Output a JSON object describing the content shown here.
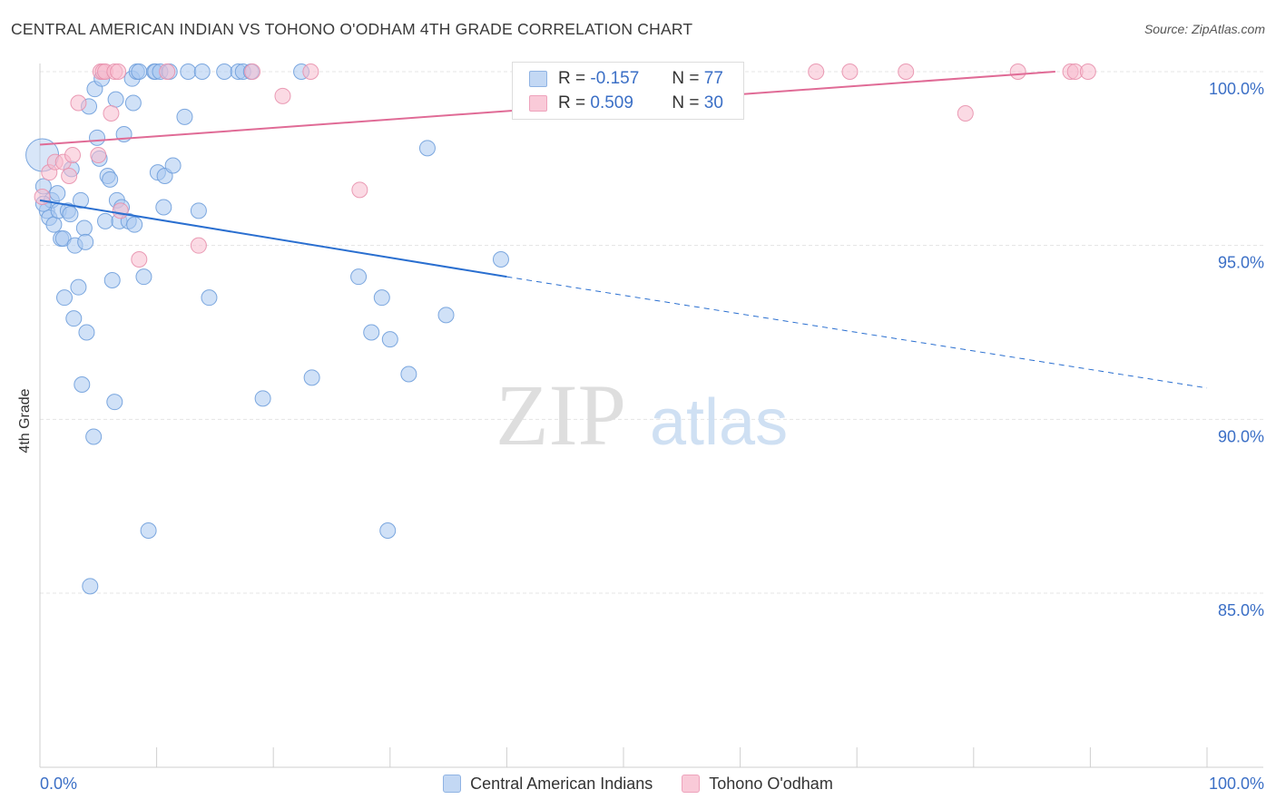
{
  "title": "CENTRAL AMERICAN INDIAN VS TOHONO O'ODHAM 4TH GRADE CORRELATION CHART",
  "source": "Source: ZipAtlas.com",
  "watermark": {
    "zip": "ZIP",
    "atlas": "atlas"
  },
  "colors": {
    "blue_fill": "#a9c8f0",
    "blue_stroke": "#6f9fdc",
    "blue_line": "#2a6fd0",
    "pink_fill": "#f7bccd",
    "pink_stroke": "#e891ad",
    "pink_line": "#e06b96",
    "tick_label": "#3b6fc6",
    "grid": "#e4e4e4"
  },
  "legend": {
    "r_label": "R =",
    "n_label": "N =",
    "rows": [
      {
        "r": "-0.157",
        "n": "77"
      },
      {
        "r": "0.509",
        "n": "30"
      }
    ]
  },
  "chart_data": {
    "type": "scatter",
    "title": "CENTRAL AMERICAN INDIAN VS TOHONO O'ODHAM 4TH GRADE CORRELATION CHART",
    "xlabel": "",
    "ylabel": "4th Grade",
    "xlim": [
      0,
      100
    ],
    "ylim": [
      80.5,
      100.8
    ],
    "x_tick_labels": [
      "0.0%",
      "100.0%"
    ],
    "y_ticks": [
      {
        "value": 100,
        "label": "100.0%"
      },
      {
        "value": 95,
        "label": "95.0%"
      },
      {
        "value": 90,
        "label": "90.0%"
      },
      {
        "value": 85,
        "label": "85.0%"
      }
    ],
    "grid": true,
    "legend_position": "top-center",
    "series": [
      {
        "name": "Central American Indians",
        "color": "#a9c8f0",
        "r": -0.157,
        "n": 77,
        "trend": {
          "x0": 0,
          "y0": 96.3,
          "x1": 40,
          "y1": 94.1,
          "dashed_to_x": 100,
          "dashed_to_y": 90.9
        },
        "points": [
          [
            0.2,
            97.6
          ],
          [
            0.3,
            96.7
          ],
          [
            0.6,
            96.0
          ],
          [
            0.8,
            95.8
          ],
          [
            1.0,
            96.3
          ],
          [
            1.2,
            95.6
          ],
          [
            1.5,
            96.5
          ],
          [
            1.6,
            96.0
          ],
          [
            1.8,
            95.2
          ],
          [
            2.0,
            95.2
          ],
          [
            2.1,
            93.5
          ],
          [
            2.4,
            96.0
          ],
          [
            2.6,
            95.9
          ],
          [
            2.7,
            97.2
          ],
          [
            2.9,
            92.9
          ],
          [
            3.0,
            95.0
          ],
          [
            3.3,
            93.8
          ],
          [
            3.5,
            96.3
          ],
          [
            3.6,
            91.0
          ],
          [
            3.8,
            95.5
          ],
          [
            3.9,
            95.1
          ],
          [
            4.0,
            92.5
          ],
          [
            4.2,
            99.0
          ],
          [
            4.3,
            85.2
          ],
          [
            4.6,
            89.5
          ],
          [
            4.7,
            99.5
          ],
          [
            4.9,
            98.1
          ],
          [
            5.1,
            97.5
          ],
          [
            5.3,
            99.8
          ],
          [
            5.6,
            95.7
          ],
          [
            5.8,
            97.0
          ],
          [
            6.0,
            96.9
          ],
          [
            6.2,
            94.0
          ],
          [
            6.4,
            90.5
          ],
          [
            6.5,
            99.2
          ],
          [
            6.6,
            96.3
          ],
          [
            6.8,
            95.7
          ],
          [
            7.0,
            96.1
          ],
          [
            7.2,
            98.2
          ],
          [
            7.6,
            95.7
          ],
          [
            7.9,
            99.8
          ],
          [
            8.0,
            99.1
          ],
          [
            8.1,
            95.6
          ],
          [
            8.3,
            100.0
          ],
          [
            8.5,
            100.0
          ],
          [
            8.9,
            94.1
          ],
          [
            9.3,
            86.8
          ],
          [
            9.8,
            100.0
          ],
          [
            9.9,
            100.0
          ],
          [
            10.1,
            97.1
          ],
          [
            10.3,
            100.0
          ],
          [
            10.6,
            96.1
          ],
          [
            10.7,
            97.0
          ],
          [
            11.1,
            100.0
          ],
          [
            11.4,
            97.3
          ],
          [
            12.4,
            98.7
          ],
          [
            12.7,
            100.0
          ],
          [
            13.6,
            96.0
          ],
          [
            13.9,
            100.0
          ],
          [
            14.5,
            93.5
          ],
          [
            15.8,
            100.0
          ],
          [
            17.0,
            100.0
          ],
          [
            17.4,
            100.0
          ],
          [
            18.1,
            100.0
          ],
          [
            19.1,
            90.6
          ],
          [
            22.4,
            100.0
          ],
          [
            23.3,
            91.2
          ],
          [
            27.3,
            94.1
          ],
          [
            28.4,
            92.5
          ],
          [
            29.3,
            93.5
          ],
          [
            29.8,
            86.8
          ],
          [
            30.0,
            92.3
          ],
          [
            31.6,
            91.3
          ],
          [
            33.2,
            97.8
          ],
          [
            34.8,
            93.0
          ],
          [
            39.5,
            94.6
          ],
          [
            0.3,
            96.2
          ]
        ]
      },
      {
        "name": "Tohono O'odham",
        "color": "#f7bccd",
        "r": 0.509,
        "n": 30,
        "trend": {
          "x0": 0,
          "y0": 97.9,
          "x1": 87,
          "y1": 100.0
        },
        "points": [
          [
            0.2,
            96.4
          ],
          [
            0.8,
            97.1
          ],
          [
            1.3,
            97.4
          ],
          [
            2.0,
            97.4
          ],
          [
            2.5,
            97.0
          ],
          [
            2.8,
            97.6
          ],
          [
            3.3,
            99.1
          ],
          [
            5.0,
            97.6
          ],
          [
            5.2,
            100.0
          ],
          [
            5.4,
            100.0
          ],
          [
            5.6,
            100.0
          ],
          [
            6.1,
            98.8
          ],
          [
            6.4,
            100.0
          ],
          [
            6.7,
            100.0
          ],
          [
            6.9,
            96.0
          ],
          [
            8.5,
            94.6
          ],
          [
            10.9,
            100.0
          ],
          [
            13.6,
            95.0
          ],
          [
            18.2,
            100.0
          ],
          [
            20.8,
            99.3
          ],
          [
            23.2,
            100.0
          ],
          [
            27.4,
            96.6
          ],
          [
            66.5,
            100.0
          ],
          [
            69.4,
            100.0
          ],
          [
            74.2,
            100.0
          ],
          [
            79.3,
            98.8
          ],
          [
            83.8,
            100.0
          ],
          [
            88.3,
            100.0
          ],
          [
            88.7,
            100.0
          ],
          [
            89.8,
            100.0
          ]
        ]
      }
    ]
  }
}
